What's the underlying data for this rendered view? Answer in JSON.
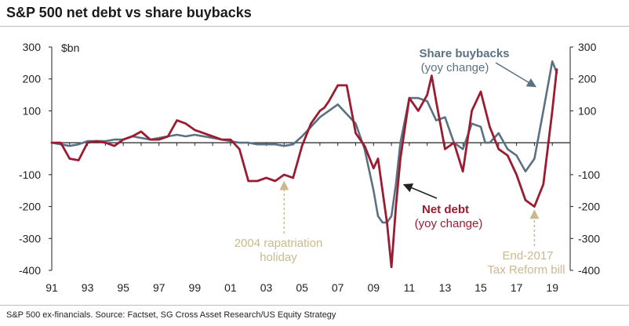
{
  "title": "S&P 500 net debt vs share buybacks",
  "footer": "S&P 500 ex-financials. Source: Factset, SG Cross Asset Research/US Equity Strategy",
  "chart_data": {
    "type": "line",
    "ylabel": "$bn",
    "ylim": [
      -400,
      300
    ],
    "yticks_left": [
      300,
      200,
      100,
      -100,
      -200,
      -300,
      -400
    ],
    "yticks_right": [
      300,
      200,
      100,
      -100,
      -200,
      -300,
      -400
    ],
    "xlim": [
      1991,
      2020
    ],
    "xticks": [
      {
        "x": 1991,
        "label": "91"
      },
      {
        "x": 1993,
        "label": "93"
      },
      {
        "x": 1995,
        "label": "95"
      },
      {
        "x": 1997,
        "label": "97"
      },
      {
        "x": 1999,
        "label": "99"
      },
      {
        "x": 2001,
        "label": "01"
      },
      {
        "x": 2003,
        "label": "03"
      },
      {
        "x": 2005,
        "label": "05"
      },
      {
        "x": 2007,
        "label": "07"
      },
      {
        "x": 2009,
        "label": "09"
      },
      {
        "x": 2011,
        "label": "11"
      },
      {
        "x": 2013,
        "label": "13"
      },
      {
        "x": 2015,
        "label": "15"
      },
      {
        "x": 2017,
        "label": "17"
      },
      {
        "x": 2019,
        "label": "19"
      }
    ],
    "series": [
      {
        "name": "Share buybacks",
        "sublabel": "(yoy change)",
        "color": "#5a7184",
        "x": [
          1991.0,
          1991.5,
          1992.0,
          1992.5,
          1993.0,
          1993.5,
          1994.0,
          1994.5,
          1995.0,
          1995.5,
          1996.0,
          1996.5,
          1997.0,
          1997.5,
          1998.0,
          1998.5,
          1999.0,
          1999.5,
          2000.0,
          2000.5,
          2001.0,
          2001.5,
          2002.0,
          2002.5,
          2003.0,
          2003.5,
          2004.0,
          2004.5,
          2005.0,
          2005.5,
          2006.0,
          2006.5,
          2007.0,
          2007.5,
          2008.0,
          2008.5,
          2009.0,
          2009.25,
          2009.5,
          2009.75,
          2010.0,
          2010.25,
          2010.5,
          2011.0,
          2011.5,
          2012.0,
          2012.5,
          2013.0,
          2013.5,
          2014.0,
          2014.5,
          2015.0,
          2015.25,
          2015.5,
          2016.0,
          2016.5,
          2017.0,
          2017.5,
          2018.0,
          2018.5,
          2019.0,
          2019.25
        ],
        "values": [
          0,
          -5,
          -10,
          -5,
          5,
          5,
          5,
          10,
          10,
          20,
          15,
          10,
          15,
          20,
          25,
          20,
          25,
          20,
          15,
          10,
          5,
          0,
          0,
          -5,
          -5,
          -5,
          -10,
          -5,
          20,
          50,
          80,
          100,
          120,
          90,
          60,
          -20,
          -150,
          -230,
          -250,
          -250,
          -230,
          -130,
          0,
          140,
          140,
          130,
          70,
          80,
          0,
          -20,
          60,
          50,
          0,
          0,
          30,
          -20,
          -40,
          -90,
          -50,
          100,
          255,
          220
        ],
        "label_lines": [
          "Share buybacks",
          "(yoy change)"
        ]
      },
      {
        "name": "Net debt",
        "sublabel": "(yoy change)",
        "color": "#9b1c31",
        "x": [
          1991.0,
          1991.5,
          1992.0,
          1992.5,
          1993.0,
          1993.5,
          1994.0,
          1994.5,
          1995.0,
          1995.5,
          1996.0,
          1996.5,
          1997.0,
          1997.5,
          1998.0,
          1998.5,
          1999.0,
          1999.5,
          2000.0,
          2000.5,
          2001.0,
          2001.5,
          2002.0,
          2002.5,
          2003.0,
          2003.5,
          2004.0,
          2004.5,
          2005.0,
          2005.5,
          2006.0,
          2006.25,
          2006.5,
          2007.0,
          2007.5,
          2008.0,
          2008.5,
          2009.0,
          2009.25,
          2009.5,
          2009.75,
          2010.0,
          2010.25,
          2010.5,
          2011.0,
          2011.5,
          2012.0,
          2012.25,
          2012.5,
          2013.0,
          2013.5,
          2014.0,
          2014.5,
          2015.0,
          2015.5,
          2016.0,
          2016.5,
          2017.0,
          2017.5,
          2018.0,
          2018.5,
          2019.0,
          2019.25
        ],
        "values": [
          0,
          0,
          -50,
          -55,
          0,
          5,
          0,
          -10,
          10,
          20,
          35,
          10,
          10,
          20,
          70,
          60,
          40,
          30,
          20,
          10,
          10,
          -20,
          -120,
          -120,
          -110,
          -120,
          -100,
          -110,
          -10,
          60,
          100,
          110,
          130,
          180,
          180,
          30,
          -10,
          -80,
          -50,
          -150,
          -250,
          -390,
          -200,
          -50,
          140,
          100,
          150,
          210,
          130,
          -20,
          0,
          -90,
          100,
          160,
          50,
          -20,
          -40,
          -100,
          -180,
          -200,
          -130,
          100,
          230
        ],
        "label_lines": [
          "Net debt",
          "(yoy change)"
        ]
      }
    ],
    "annotations": [
      {
        "text_lines": [
          "2004 rapatriation",
          "holiday"
        ],
        "arrow_x": 2004
      },
      {
        "text_lines": [
          "End-2017",
          "Tax Reform bill"
        ],
        "arrow_x": 2018
      }
    ]
  }
}
